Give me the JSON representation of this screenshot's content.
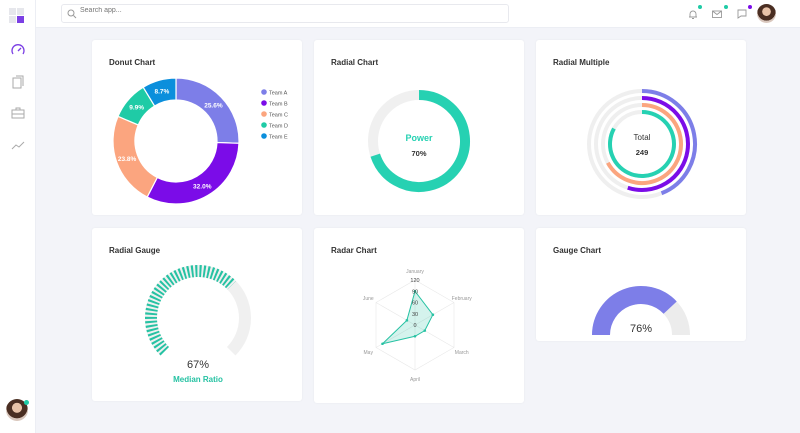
{
  "header": {
    "search_placeholder": "Search app...",
    "icons": [
      "bell-icon",
      "mail-icon",
      "chat-icon"
    ],
    "dot_colors": [
      "#1fcba6",
      "#1fcba6",
      "#7b0ce8"
    ]
  },
  "sidebar": {
    "items": [
      "dashboard-icon",
      "clipboard-icon",
      "briefcase-icon",
      "trend-icon"
    ],
    "active_color": "#7b3fe4"
  },
  "cards": {
    "donut": {
      "title": "Donut Chart"
    },
    "radial": {
      "title": "Radial Chart"
    },
    "radial_multiple": {
      "title": "Radial Multiple"
    },
    "radial_gauge": {
      "title": "Radial Gauge"
    },
    "radar": {
      "title": "Radar Chart"
    },
    "gauge": {
      "title": "Gauge Chart"
    }
  },
  "chart_data": [
    {
      "type": "pie",
      "variant": "donut",
      "title": "Donut Chart",
      "categories": [
        "Team A",
        "Team B",
        "Team C",
        "Team D",
        "Team E"
      ],
      "values": [
        44,
        55,
        41,
        17,
        15
      ],
      "data_labels": [
        "25.6%",
        "32.0%",
        "23.8%",
        "9.9%",
        "8.7%"
      ],
      "colors": [
        "#7d7ee8",
        "#7b0ce8",
        "#fba57f",
        "#1fcba6",
        "#0b8fdc"
      ],
      "legend": "right"
    },
    {
      "type": "radialBar",
      "title": "Radial Chart",
      "label": "Power",
      "value": 70,
      "value_label": "70%",
      "color": "#26d1b2"
    },
    {
      "type": "radialBar",
      "title": "Radial Multiple",
      "values": [
        44,
        55,
        67,
        83
      ],
      "colors": [
        "#7d7ee8",
        "#7b0ce8",
        "#fba57f",
        "#26d1b2"
      ],
      "total_label": "Total",
      "total": "249"
    },
    {
      "type": "radialBar",
      "variant": "dashed-gauge",
      "title": "Radial Gauge",
      "value": 67,
      "value_label": "67%",
      "label": "Median Ratio",
      "color": "#26c2a3"
    },
    {
      "type": "radar",
      "title": "Radar Chart",
      "categories": [
        "January",
        "February",
        "March",
        "April",
        "May",
        "June"
      ],
      "values": [
        90,
        55,
        30,
        30,
        100,
        25
      ],
      "ticks": [
        "0",
        "30",
        "60",
        "90",
        "120"
      ],
      "ylim": [
        0,
        120
      ],
      "color": "#26c2a3"
    },
    {
      "type": "radialBar",
      "variant": "semicircle",
      "title": "Gauge Chart",
      "value": 76,
      "value_label": "76%",
      "color": "#7d7ee8"
    }
  ]
}
